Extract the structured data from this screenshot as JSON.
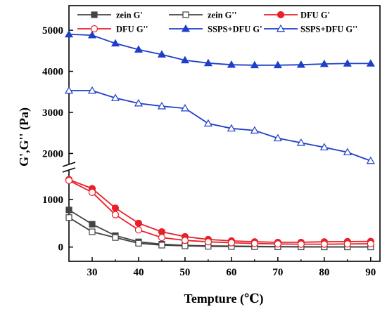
{
  "chart_data": {
    "type": "line",
    "xlabel": "Tempture (℃)",
    "ylabel": "G',G'' (Pa)",
    "xlim": [
      25,
      92
    ],
    "y_axis_broken": true,
    "y_segments": [
      {
        "range": [
          -300,
          1650
        ],
        "ticks": [
          0,
          1000
        ]
      },
      {
        "range": [
          1700,
          5600
        ],
        "ticks": [
          2000,
          3000,
          4000,
          5000
        ]
      }
    ],
    "x_ticks": [
      30,
      40,
      50,
      60,
      70,
      80,
      90
    ],
    "legend_position": "top",
    "grid": false,
    "series": [
      {
        "name": "zein G'",
        "color": "#444444",
        "marker": "square",
        "filled": true,
        "x": [
          25,
          30,
          35,
          40,
          45,
          50,
          55,
          60,
          65,
          70,
          75,
          80,
          85,
          90
        ],
        "y": [
          780,
          480,
          240,
          110,
          60,
          35,
          25,
          20,
          15,
          10,
          8,
          5,
          5,
          5
        ]
      },
      {
        "name": "zein G''",
        "color": "#444444",
        "marker": "square",
        "filled": false,
        "x": [
          25,
          30,
          35,
          40,
          45,
          50,
          55,
          60,
          65,
          70,
          75,
          80,
          85,
          90
        ],
        "y": [
          620,
          320,
          200,
          80,
          40,
          25,
          15,
          10,
          8,
          5,
          3,
          2,
          2,
          2
        ]
      },
      {
        "name": "DFU G'",
        "color": "#e8202a",
        "marker": "circle",
        "filled": true,
        "x": [
          25,
          30,
          35,
          40,
          45,
          50,
          55,
          60,
          65,
          70,
          75,
          80,
          85,
          90
        ],
        "y": [
          1420,
          1230,
          820,
          500,
          320,
          220,
          160,
          130,
          110,
          100,
          100,
          110,
          115,
          120
        ]
      },
      {
        "name": "DFU G''",
        "color": "#e8202a",
        "marker": "circle",
        "filled": false,
        "x": [
          25,
          30,
          35,
          40,
          45,
          50,
          55,
          60,
          65,
          70,
          75,
          80,
          85,
          90
        ],
        "y": [
          1400,
          1150,
          680,
          360,
          200,
          140,
          110,
          90,
          75,
          65,
          60,
          60,
          65,
          70
        ]
      },
      {
        "name": "SSPS+DFU G'",
        "color": "#1f3fc8",
        "marker": "triangle",
        "filled": true,
        "x": [
          25,
          30,
          35,
          40,
          45,
          50,
          55,
          60,
          65,
          70,
          75,
          80,
          85,
          90
        ],
        "y": [
          4900,
          4880,
          4680,
          4530,
          4410,
          4270,
          4200,
          4160,
          4150,
          4150,
          4160,
          4180,
          4190,
          4190
        ]
      },
      {
        "name": "SSPS+DFU G''",
        "color": "#1f3fc8",
        "marker": "triangle",
        "filled": false,
        "x": [
          25,
          30,
          35,
          40,
          45,
          50,
          55,
          60,
          65,
          70,
          75,
          80,
          85,
          90
        ],
        "y": [
          3530,
          3530,
          3350,
          3220,
          3150,
          3100,
          2730,
          2610,
          2560,
          2370,
          2260,
          2150,
          2030,
          1820
        ]
      }
    ]
  }
}
